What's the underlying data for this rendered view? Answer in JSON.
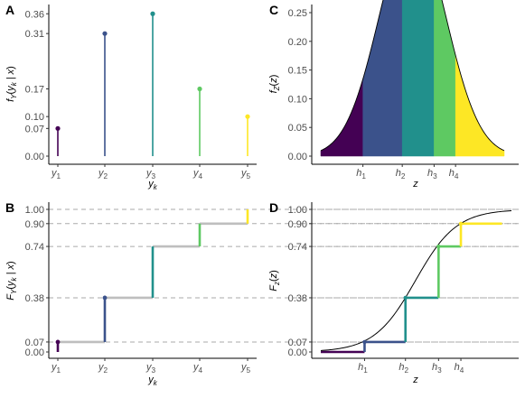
{
  "chart_data": [
    {
      "panel": "A",
      "type": "lollipop",
      "ylabel": "f_Y(y_k | x)",
      "xlabel": "y_k",
      "categories": [
        "y1",
        "y2",
        "y3",
        "y4",
        "y5"
      ],
      "values": [
        0.07,
        0.31,
        0.36,
        0.17,
        0.1
      ],
      "colors": [
        "#440154",
        "#3b528b",
        "#21908c",
        "#5ec962",
        "#fde725"
      ],
      "ylim": [
        0,
        0.38
      ],
      "yticks": [
        "0.00",
        "0.07",
        "0.10",
        "0.17",
        "0.31",
        "0.36"
      ]
    },
    {
      "panel": "B",
      "type": "step",
      "ylabel": "F_Y(y_k | x)",
      "xlabel": "y_k",
      "categories": [
        "y1",
        "y2",
        "y3",
        "y4",
        "y5"
      ],
      "values": [
        0.07,
        0.38,
        0.74,
        0.9,
        1.0
      ],
      "colors": [
        "#440154",
        "#3b528b",
        "#21908c",
        "#5ec962",
        "#fde725"
      ],
      "ylim": [
        0,
        1
      ],
      "yticks": [
        "0.00",
        "0.07",
        "0.38",
        "0.74",
        "0.90",
        "1.00"
      ],
      "reference_lines": [
        0.07,
        0.38,
        0.74,
        0.9,
        1.0
      ]
    },
    {
      "panel": "C",
      "type": "area",
      "ylabel": "f_Z(z)",
      "xlabel": "z",
      "distribution": "standard normal density",
      "cutpoints": [
        -1.476,
        -0.305,
        0.643,
        1.282
      ],
      "cutpoint_labels": [
        "h1",
        "h2",
        "h3",
        "h4"
      ],
      "colors": [
        "#440154",
        "#3b528b",
        "#21908c",
        "#5ec962",
        "#fde725"
      ],
      "xlim": [
        -2.73,
        2.73
      ],
      "ylim": [
        0,
        0.25
      ],
      "yticks": [
        "0.00",
        "0.05",
        "0.10",
        "0.15",
        "0.20",
        "0.25"
      ]
    },
    {
      "panel": "D",
      "type": "line",
      "ylabel": "F_z(z)",
      "xlabel": "z",
      "distribution": "logistic CDF",
      "cutpoints": [
        -1.476,
        -0.305,
        0.643,
        1.282
      ],
      "cutpoint_labels": [
        "h1",
        "h2",
        "h3",
        "h4"
      ],
      "cumulative": [
        0.07,
        0.38,
        0.74,
        0.9
      ],
      "colors": [
        "#440154",
        "#3b528b",
        "#21908c",
        "#5ec962",
        "#fde725"
      ],
      "xlim": [
        -2.73,
        2.73
      ],
      "ylim": [
        0,
        1
      ],
      "yticks": [
        "0.00",
        "0.07",
        "0.38",
        "0.74",
        "0.90",
        "1.00"
      ],
      "reference_lines": [
        0.07,
        0.38,
        0.74,
        0.9,
        1.0
      ]
    }
  ]
}
